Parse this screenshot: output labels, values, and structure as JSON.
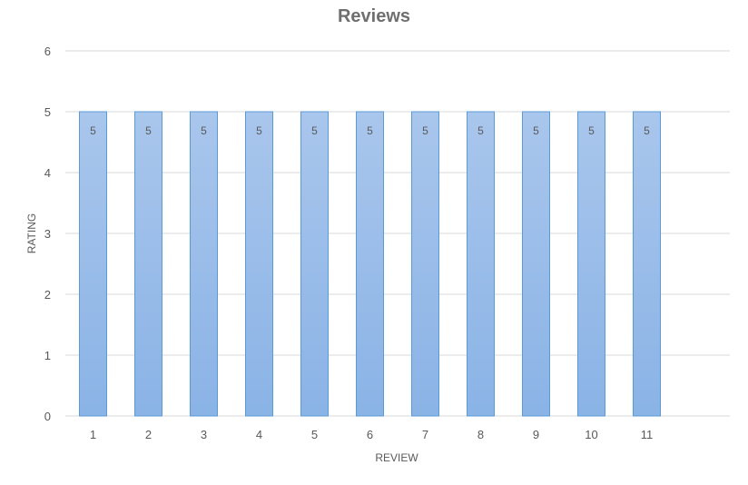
{
  "chart_data": {
    "type": "bar",
    "title": "Reviews",
    "xlabel": "REVIEW",
    "ylabel": "RATING",
    "categories": [
      "1",
      "2",
      "3",
      "4",
      "5",
      "6",
      "7",
      "8",
      "9",
      "10",
      "11"
    ],
    "values": [
      5,
      5,
      5,
      5,
      5,
      5,
      5,
      5,
      5,
      5,
      5
    ],
    "ylim": [
      0,
      6
    ],
    "yticks": [
      0,
      1,
      2,
      3,
      4,
      5,
      6
    ],
    "grid": true,
    "legend": "none",
    "data_labels": true,
    "colors": {
      "bar_top": "#a9c6ec",
      "bar_bottom": "#8ab3e6",
      "bar_border": "#5b9bd5",
      "grid": "#d9d9d9",
      "text": "#595959",
      "title": "#6f6f6f"
    }
  }
}
